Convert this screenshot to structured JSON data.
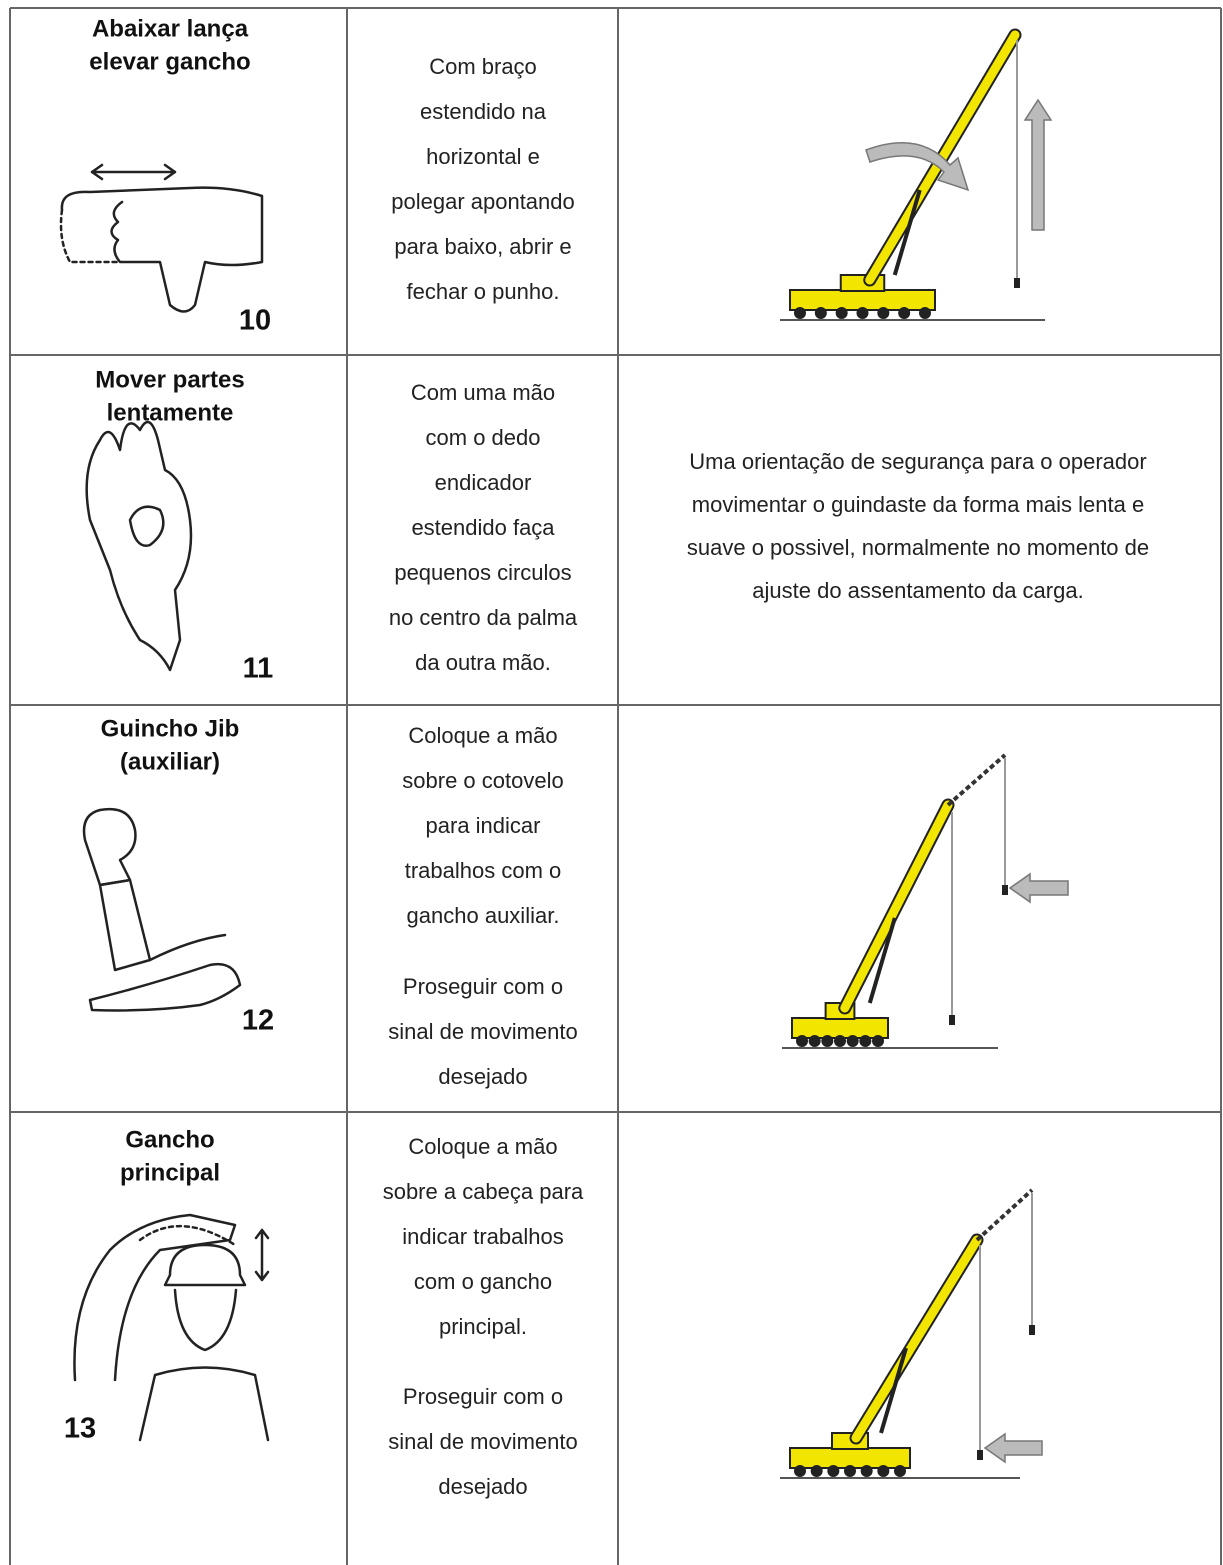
{
  "rows": [
    {
      "title": [
        "Abaixar lança",
        "elevar gancho"
      ],
      "number": "10",
      "description": [
        [
          "Com braço",
          "estendido na",
          "horizontal e",
          "polegar apontando",
          "para baixo, abrir e",
          "fechar o punho."
        ]
      ]
    },
    {
      "title": [
        "Mover partes",
        "lentamente"
      ],
      "number": "11",
      "description": [
        [
          "Com uma mão",
          "com o dedo",
          "endicador",
          "estendido faça",
          "pequenos circulos",
          "no centro da palma",
          "da outra mão."
        ]
      ],
      "note": [
        "Uma orientação de segurança para o operador",
        "movimentar o guindaste da forma mais lenta e",
        "suave o possivel, normalmente no momento de",
        "ajuste do assentamento da carga."
      ]
    },
    {
      "title": [
        "Guincho Jib",
        "(auxiliar)"
      ],
      "number": "12",
      "description": [
        [
          "Coloque a mão",
          "sobre o cotovelo",
          "para indicar",
          "trabalhos com o",
          "gancho auxiliar."
        ],
        [
          "Proseguir com o",
          "sinal de movimento",
          "desejado"
        ]
      ]
    },
    {
      "title": [
        "Gancho",
        "principal"
      ],
      "number": "13",
      "description": [
        [
          "Coloque a mão",
          "sobre a cabeça para",
          "indicar trabalhos",
          "com o gancho",
          "principal."
        ],
        [
          "Proseguir com o",
          "sinal de movimento",
          "desejado"
        ]
      ]
    }
  ]
}
